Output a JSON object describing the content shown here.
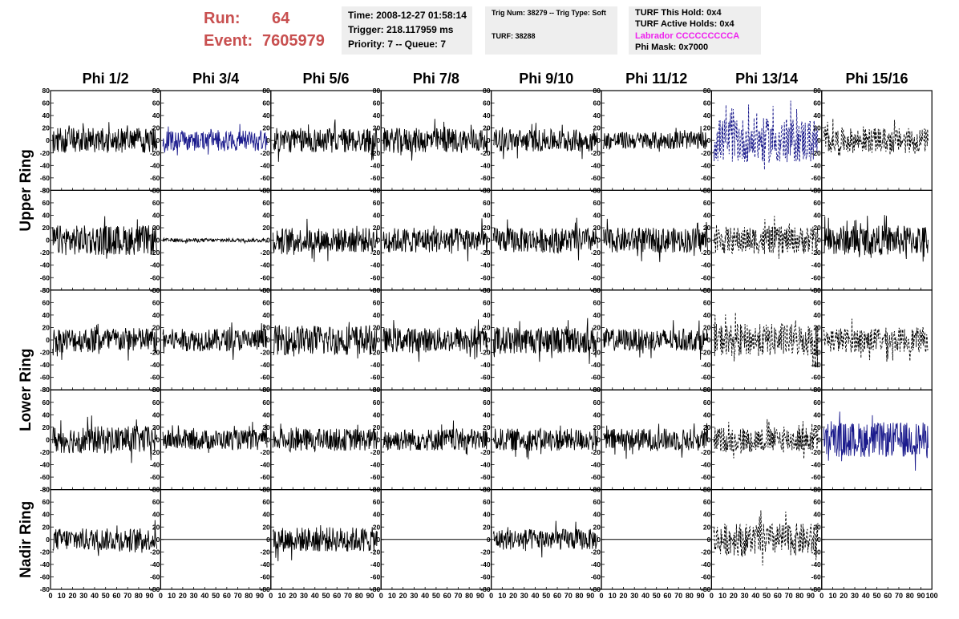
{
  "header": {
    "run_label": "Run:",
    "run_value": "64",
    "event_label": "Event:",
    "event_value": "7605979"
  },
  "info_time": {
    "time": "Time: 2008-12-27 01:58:14",
    "trigger": "Trigger: 218.117959 ms",
    "priority": "Priority: 7 -- Queue: 7"
  },
  "info_trig": {
    "trig": "Trig Num: 38279 -- Trig Type: Soft",
    "turf": "TURF: 38288"
  },
  "info_turf": {
    "this_hold": "TURF This Hold: 0x4",
    "active_holds": "TURF Active Holds: 0x4",
    "labrador": "Labrador CCCCCCCCCA",
    "phi_mask": "Phi Mask: 0x7000",
    "labrador_color": "#ee22ee"
  },
  "chart_data": {
    "type": "line",
    "columns": [
      "Phi 1/2",
      "Phi 3/4",
      "Phi 5/6",
      "Phi 7/8",
      "Phi 9/10",
      "Phi 11/12",
      "Phi 13/14",
      "Phi 15/16"
    ],
    "row_groups": [
      {
        "label": "Upper Ring",
        "rows": [
          0,
          1
        ]
      },
      {
        "label": "Lower Ring",
        "rows": [
          2,
          3
        ]
      },
      {
        "label": "Nadir Ring",
        "rows": [
          4
        ]
      }
    ],
    "ylim": [
      -80,
      80
    ],
    "yticks": [
      -80,
      -60,
      -40,
      -20,
      0,
      20,
      40,
      60,
      80
    ],
    "xlim": [
      0,
      100
    ],
    "xticks": [
      0,
      10,
      20,
      30,
      40,
      50,
      60,
      70,
      80,
      90
    ],
    "last_tick": "100",
    "colors": {
      "normal": "#000000",
      "triggered": "#1a1a8c"
    },
    "panels": [
      [
        {
          "style": "solid",
          "amp": 20,
          "color": "normal"
        },
        {
          "style": "solid",
          "amp": 17,
          "color": "triggered"
        },
        {
          "style": "solid",
          "amp": 20,
          "color": "normal"
        },
        {
          "style": "solid",
          "amp": 20,
          "color": "normal"
        },
        {
          "style": "solid",
          "amp": 18,
          "color": "normal"
        },
        {
          "style": "solid",
          "amp": 14,
          "color": "normal"
        },
        {
          "style": "dashed",
          "amp": 36,
          "color": "triggered"
        },
        {
          "style": "dashed",
          "amp": 20,
          "color": "normal"
        }
      ],
      [
        {
          "style": "solid",
          "amp": 24,
          "color": "normal"
        },
        {
          "style": "solid",
          "amp": 3,
          "color": "normal"
        },
        {
          "style": "solid",
          "amp": 20,
          "color": "normal"
        },
        {
          "style": "solid",
          "amp": 20,
          "color": "normal"
        },
        {
          "style": "solid",
          "amp": 20,
          "color": "normal"
        },
        {
          "style": "solid",
          "amp": 20,
          "color": "normal"
        },
        {
          "style": "dashed",
          "amp": 22,
          "color": "normal"
        },
        {
          "style": "solid",
          "amp": 24,
          "color": "normal"
        }
      ],
      [
        {
          "style": "solid",
          "amp": 20,
          "color": "normal"
        },
        {
          "style": "solid",
          "amp": 18,
          "color": "normal"
        },
        {
          "style": "solid",
          "amp": 24,
          "color": "normal"
        },
        {
          "style": "solid",
          "amp": 20,
          "color": "normal"
        },
        {
          "style": "solid",
          "amp": 22,
          "color": "normal"
        },
        {
          "style": "solid",
          "amp": 18,
          "color": "normal"
        },
        {
          "style": "dashed",
          "amp": 26,
          "color": "normal"
        },
        {
          "style": "dashed",
          "amp": 20,
          "color": "normal"
        }
      ],
      [
        {
          "style": "solid",
          "amp": 22,
          "color": "normal"
        },
        {
          "style": "solid",
          "amp": 16,
          "color": "normal"
        },
        {
          "style": "solid",
          "amp": 18,
          "color": "normal"
        },
        {
          "style": "solid",
          "amp": 18,
          "color": "normal"
        },
        {
          "style": "solid",
          "amp": 18,
          "color": "normal"
        },
        {
          "style": "solid",
          "amp": 18,
          "color": "normal"
        },
        {
          "style": "dashed",
          "amp": 20,
          "color": "normal"
        },
        {
          "style": "solid",
          "amp": 28,
          "color": "triggered"
        }
      ],
      [
        {
          "style": "solid",
          "amp": 18,
          "color": "normal"
        },
        {
          "style": "flat",
          "amp": 0,
          "color": "normal"
        },
        {
          "style": "solid",
          "amp": 20,
          "color": "normal"
        },
        {
          "style": "flat",
          "amp": 0,
          "color": "normal"
        },
        {
          "style": "solid",
          "amp": 17,
          "color": "normal"
        },
        {
          "style": "flat",
          "amp": 0,
          "color": "normal"
        },
        {
          "style": "dashed",
          "amp": 26,
          "color": "normal"
        },
        {
          "style": "flat",
          "amp": 0,
          "color": "normal"
        }
      ]
    ]
  }
}
